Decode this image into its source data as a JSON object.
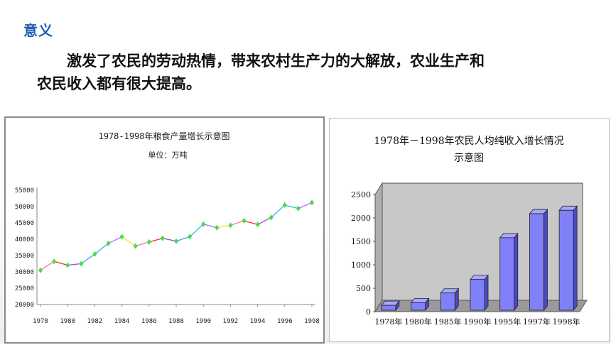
{
  "heading": "意义",
  "paragraph": {
    "line1": "激发了农民的劳动热情，带来农村生产力的大解放，农业生产和",
    "line2": "农民收入都有很大提高。"
  },
  "chart_data": [
    {
      "type": "line",
      "title": "1978-1998年粮食产量增长示意图",
      "subtitle": "单位：万吨",
      "xlabel": "",
      "ylabel": "",
      "ylim": [
        20000,
        55000
      ],
      "yticks": [
        "20000",
        "25000",
        "30000",
        "35000",
        "40000",
        "45000",
        "50000",
        "55000"
      ],
      "xticks": [
        "1978",
        "1980",
        "1982",
        "1984",
        "1986",
        "1988",
        "1990",
        "1992",
        "1994",
        "1996",
        "1998"
      ],
      "x": [
        1978,
        1979,
        1980,
        1981,
        1982,
        1983,
        1984,
        1985,
        1986,
        1987,
        1988,
        1989,
        1990,
        1991,
        1992,
        1993,
        1994,
        1995,
        1996,
        1997,
        1998
      ],
      "values": [
        30477,
        33212,
        32056,
        32502,
        35450,
        38728,
        40731,
        37911,
        39151,
        40298,
        39408,
        40755,
        44624,
        43529,
        44266,
        45649,
        44510,
        46662,
        50454,
        49417,
        51230
      ],
      "series_colors": [
        "#ff6fbf",
        "#ff3333",
        "#9b59d6",
        "#4aa8ff",
        "#33c6d6",
        "#c86bff",
        "#ffe14a"
      ],
      "marker_color": "#44dd44",
      "grid": false
    },
    {
      "type": "bar",
      "title": "1978年－1998年农民人均纯收入增长情况",
      "title_line2": "示意图",
      "categories": [
        "1978年",
        "1980年",
        "1985年",
        "1990年",
        "1995年",
        "1997年",
        "1998年"
      ],
      "values": [
        134,
        191,
        398,
        686,
        1578,
        2090,
        2162
      ],
      "ylim": [
        0,
        2500
      ],
      "yticks": [
        "0",
        "500",
        "1000",
        "1500",
        "2000",
        "2500"
      ],
      "bar_color": "#8080f8",
      "wall_color": "#c8c8c8",
      "grid": false
    }
  ]
}
